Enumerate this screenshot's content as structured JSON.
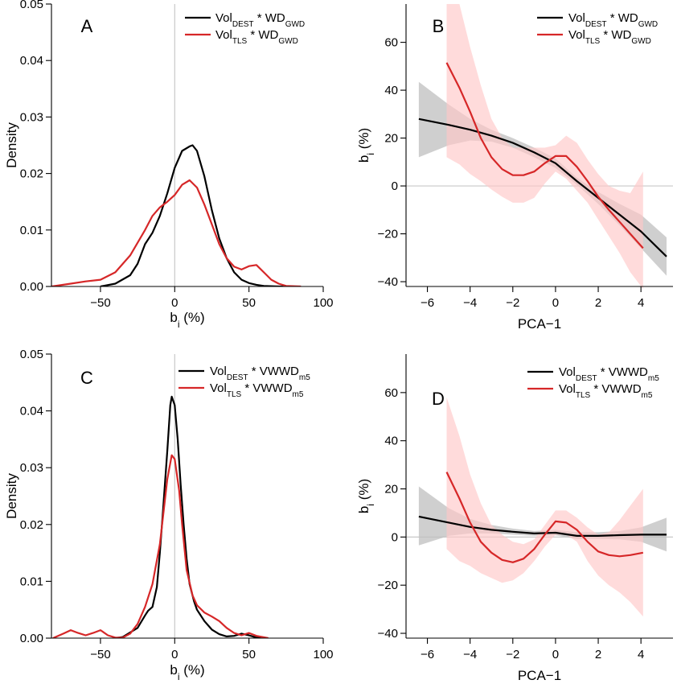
{
  "chart_data": [
    {
      "panel": "A",
      "type": "line",
      "kind": "density",
      "xlabel": {
        "base": "b",
        "sub": "i",
        "rest": " (%)"
      },
      "ylabel": "Density",
      "xlim": [
        -83,
        100
      ],
      "ylim": [
        0,
        0.05
      ],
      "xticks": [
        -50,
        0,
        50,
        100
      ],
      "yticks": [
        0.0,
        0.01,
        0.02,
        0.03,
        0.04,
        0.05
      ],
      "ytick_labels": [
        "0.00",
        "0.01",
        "0.02",
        "0.03",
        "0.04",
        "0.05"
      ],
      "vline_x": 0,
      "legend_position": "top-right",
      "series": [
        {
          "legend": {
            "pre": "Vol",
            "sub1": "DEST",
            "mid": " * WD",
            "sub2": "GWD"
          },
          "color": "#000000",
          "x": [
            -50,
            -40,
            -30,
            -25,
            -20,
            -15,
            -10,
            -5,
            0,
            5,
            10,
            12,
            15,
            20,
            25,
            30,
            35,
            40,
            45,
            50,
            55,
            60,
            70,
            80
          ],
          "y": [
            0.0,
            0.0005,
            0.002,
            0.004,
            0.0075,
            0.0095,
            0.0125,
            0.0165,
            0.021,
            0.024,
            0.0248,
            0.025,
            0.024,
            0.0195,
            0.0135,
            0.0085,
            0.005,
            0.0025,
            0.0012,
            0.0006,
            0.0003,
            0.0001,
            0.0,
            0.0
          ]
        },
        {
          "legend": {
            "pre": "Vol",
            "sub1": "TLS",
            "mid": " * WD",
            "sub2": "GWD"
          },
          "color": "#d62728",
          "x": [
            -83,
            -70,
            -60,
            -50,
            -40,
            -30,
            -20,
            -15,
            -10,
            -5,
            0,
            5,
            10,
            15,
            20,
            25,
            30,
            35,
            40,
            45,
            50,
            55,
            60,
            65,
            70,
            75,
            85
          ],
          "y": [
            0.0,
            0.0005,
            0.0009,
            0.0012,
            0.0025,
            0.0055,
            0.01,
            0.0125,
            0.014,
            0.015,
            0.0162,
            0.018,
            0.0188,
            0.0175,
            0.0145,
            0.011,
            0.0075,
            0.005,
            0.0035,
            0.003,
            0.0036,
            0.0038,
            0.0025,
            0.0012,
            0.0005,
            0.0001,
            0.0
          ]
        }
      ]
    },
    {
      "panel": "B",
      "type": "line",
      "kind": "smooth-with-ci",
      "xlabel": {
        "base": "PCA−1",
        "sub": "",
        "rest": ""
      },
      "ylabel": {
        "base": "b",
        "sub": "i",
        "rest": " (%)"
      },
      "xlim": [
        -7,
        5.5
      ],
      "ylim": [
        -42,
        76
      ],
      "xticks": [
        -6,
        -4,
        -2,
        0,
        2,
        4
      ],
      "yticks": [
        -40,
        -20,
        0,
        20,
        40,
        60
      ],
      "ytick_labels": [
        "−40",
        "−20",
        "0",
        "20",
        "40",
        "60"
      ],
      "hline_y": 0,
      "legend_position": "top-right",
      "series": [
        {
          "legend": {
            "pre": "Vol",
            "sub1": "DEST",
            "mid": " * WD",
            "sub2": "GWD"
          },
          "color": "#000000",
          "band_color": "#bfbfbf",
          "x": [
            -6.4,
            -5,
            -4,
            -3,
            -2,
            -1,
            0,
            1,
            2,
            3,
            4,
            5.2
          ],
          "y": [
            28,
            25.5,
            23.5,
            21,
            18,
            14,
            9.5,
            2,
            -5,
            -12,
            -19,
            -29.5
          ],
          "lower": [
            12,
            17,
            19,
            18.5,
            16,
            12,
            7.5,
            0.5,
            -7.5,
            -16.5,
            -26,
            -37.5
          ],
          "upper": [
            43.5,
            34,
            28,
            23.5,
            20,
            16,
            11.5,
            3.5,
            -2.5,
            -7.5,
            -12,
            -21.5
          ]
        },
        {
          "legend": {
            "pre": "Vol",
            "sub1": "TLS",
            "mid": " * WD",
            "sub2": "GWD"
          },
          "color": "#d62728",
          "band_color": "#ffc8c8",
          "x": [
            -5.1,
            -4.5,
            -4,
            -3.5,
            -3,
            -2.5,
            -2,
            -1.5,
            -1,
            -0.5,
            0,
            0.5,
            1,
            1.5,
            2,
            2.5,
            3,
            3.5,
            4.1
          ],
          "y": [
            51.5,
            41,
            31,
            20,
            12,
            7,
            4.5,
            4.5,
            6,
            9.5,
            12.5,
            12.5,
            8,
            2,
            -4.5,
            -10,
            -15,
            -20,
            -26
          ],
          "lower": [
            12,
            9,
            5,
            2,
            -1.5,
            -4.5,
            -7,
            -7,
            -5,
            1,
            6,
            3,
            -2,
            -7,
            -14,
            -21,
            -28,
            -36,
            -43
          ],
          "upper": [
            76,
            76,
            58,
            42,
            28,
            20,
            16,
            16,
            16,
            16,
            17,
            21,
            18,
            11,
            5,
            0,
            -2,
            -3,
            6
          ]
        }
      ]
    },
    {
      "panel": "C",
      "type": "line",
      "kind": "density",
      "xlabel": {
        "base": "b",
        "sub": "i",
        "rest": " (%)"
      },
      "ylabel": "Density",
      "xlim": [
        -83,
        100
      ],
      "ylim": [
        0,
        0.05
      ],
      "xticks": [
        -50,
        0,
        50,
        100
      ],
      "yticks": [
        0.0,
        0.01,
        0.02,
        0.03,
        0.04,
        0.05
      ],
      "ytick_labels": [
        "0.00",
        "0.01",
        "0.02",
        "0.03",
        "0.04",
        "0.05"
      ],
      "vline_x": 0,
      "legend_position": "top-right",
      "series": [
        {
          "legend": {
            "pre": "Vol",
            "sub1": "DEST",
            "mid": " * VWWD",
            "sub2": "m5"
          },
          "color": "#000000",
          "x": [
            -40,
            -35,
            -30,
            -25,
            -20,
            -18,
            -15,
            -12,
            -10,
            -8,
            -5,
            -3,
            -2,
            0,
            2,
            4,
            6,
            8,
            10,
            13,
            15,
            20,
            25,
            30,
            35,
            40,
            45,
            50,
            55,
            60
          ],
          "y": [
            0.0,
            0.0002,
            0.001,
            0.0018,
            0.004,
            0.0048,
            0.0055,
            0.009,
            0.015,
            0.022,
            0.033,
            0.041,
            0.0425,
            0.041,
            0.035,
            0.027,
            0.02,
            0.014,
            0.0095,
            0.0065,
            0.005,
            0.003,
            0.0015,
            0.0007,
            0.0003,
            0.0004,
            0.0008,
            0.0005,
            0.0001,
            0.0
          ]
        },
        {
          "legend": {
            "pre": "Vol",
            "sub1": "TLS",
            "mid": " * VWWD",
            "sub2": "m5"
          },
          "color": "#d62728",
          "x": [
            -82,
            -75,
            -70,
            -65,
            -60,
            -55,
            -50,
            -45,
            -40,
            -35,
            -30,
            -25,
            -20,
            -15,
            -10,
            -5,
            -2,
            0,
            3,
            5,
            8,
            12,
            15,
            20,
            25,
            30,
            35,
            40,
            45,
            50,
            55,
            63
          ],
          "y": [
            0.0,
            0.0008,
            0.0014,
            0.0009,
            0.0005,
            0.0009,
            0.0014,
            0.0005,
            0.0001,
            0.0001,
            0.0008,
            0.0025,
            0.0055,
            0.0095,
            0.0165,
            0.028,
            0.0322,
            0.0315,
            0.026,
            0.02,
            0.012,
            0.0075,
            0.0058,
            0.0045,
            0.0038,
            0.003,
            0.0018,
            0.0009,
            0.0005,
            0.0009,
            0.0004,
            0.0
          ]
        }
      ]
    },
    {
      "panel": "D",
      "type": "line",
      "kind": "smooth-with-ci",
      "xlabel": {
        "base": "PCA−1",
        "sub": "",
        "rest": ""
      },
      "ylabel": {
        "base": "b",
        "sub": "i",
        "rest": " (%)"
      },
      "xlim": [
        -7,
        5.5
      ],
      "ylim": [
        -42,
        76
      ],
      "xticks": [
        -6,
        -4,
        -2,
        0,
        2,
        4
      ],
      "yticks": [
        -40,
        -20,
        0,
        20,
        40,
        60
      ],
      "ytick_labels": [
        "−40",
        "−20",
        "0",
        "20",
        "40",
        "60"
      ],
      "hline_y": 0,
      "legend_position": "top-right",
      "series": [
        {
          "legend": {
            "pre": "Vol",
            "sub1": "DEST",
            "mid": " * VWWD",
            "sub2": "m5"
          },
          "color": "#000000",
          "band_color": "#bfbfbf",
          "x": [
            -6.4,
            -5,
            -4,
            -3,
            -2,
            -1,
            0,
            1,
            2,
            3,
            4,
            5.2
          ],
          "y": [
            8.5,
            6,
            4.2,
            3,
            2.2,
            1.5,
            1.8,
            0.5,
            0.5,
            0.8,
            1,
            1
          ],
          "lower": [
            -3.5,
            0.5,
            1.5,
            1.5,
            1,
            0.5,
            0.7,
            -0.8,
            -0.8,
            -1,
            -2,
            -6
          ],
          "upper": [
            21,
            12,
            7.5,
            5,
            3.5,
            2.5,
            3,
            2,
            2,
            2.5,
            4,
            8
          ]
        },
        {
          "legend": {
            "pre": "Vol",
            "sub1": "TLS",
            "mid": " * VWWD",
            "sub2": "m5"
          },
          "color": "#d62728",
          "band_color": "#ffc8c8",
          "x": [
            -5.1,
            -4.5,
            -4,
            -3.5,
            -3,
            -2.5,
            -2,
            -1.5,
            -1,
            -0.5,
            0,
            0.5,
            1,
            1.5,
            2,
            2.5,
            3,
            3.5,
            4.1
          ],
          "y": [
            27,
            16,
            6,
            -2,
            -6.5,
            -9.5,
            -10.5,
            -9,
            -5,
            1,
            6.5,
            6,
            3,
            -2,
            -6,
            -7.5,
            -8,
            -7.5,
            -6.5
          ],
          "lower": [
            -5,
            -10,
            -12,
            -15,
            -17,
            -19,
            -18,
            -15,
            -10,
            -4,
            1,
            1,
            -2,
            -10,
            -16,
            -20,
            -23,
            -27,
            -33
          ],
          "upper": [
            58,
            42,
            26,
            14,
            5,
            1,
            -2,
            -3,
            -1,
            5,
            11,
            11,
            8,
            4,
            1,
            2,
            7,
            13,
            20
          ]
        }
      ]
    }
  ]
}
